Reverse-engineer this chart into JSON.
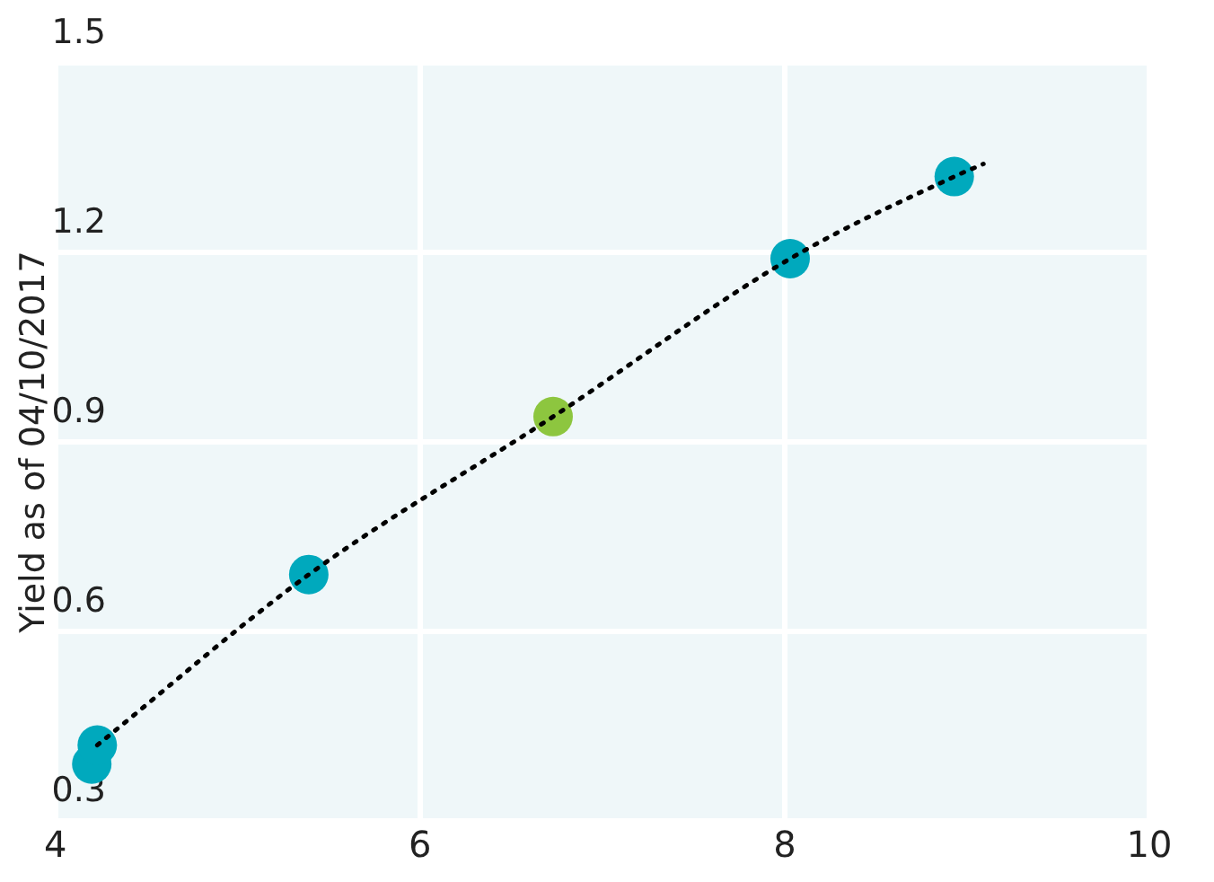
{
  "chart_data": {
    "type": "scatter",
    "ylabel": "Yield as of 04/10/2017",
    "xlim": [
      4,
      10
    ],
    "xticks": [
      4,
      6,
      8,
      10
    ],
    "ylim": [
      0.3,
      1.5
    ],
    "yticks": [
      0.3,
      0.6,
      0.9,
      1.2,
      1.5
    ],
    "grid": true,
    "legend": false,
    "marker": "circle",
    "series": [
      {
        "x": [
          4.2,
          4.23,
          5.39,
          6.73,
          8.03,
          8.93
        ],
        "values": [
          0.39,
          0.42,
          0.69,
          0.94,
          1.19,
          1.32
        ],
        "colors": [
          "#00a9bd",
          "#00a9bd",
          "#00a9bd",
          "#8dc63f",
          "#00a9bd",
          "#00a9bd"
        ]
      },
      {
        "type": "line",
        "x": [
          4.23,
          5.39,
          6.73,
          8.03,
          8.93,
          9.09
        ],
        "values": [
          0.42,
          0.69,
          0.94,
          1.19,
          1.32,
          1.34
        ],
        "color": "#000000",
        "line_style": "dotted",
        "marker": "none"
      }
    ]
  }
}
